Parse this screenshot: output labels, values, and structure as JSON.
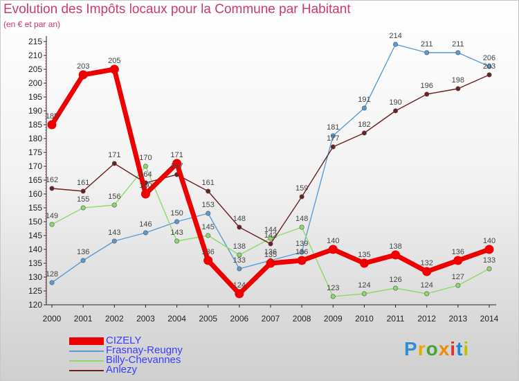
{
  "title": "Evolution des Impôts locaux pour la Commune par Habitant",
  "subtitle": "(en € et par an)",
  "logo": {
    "text": "Proxiti",
    "colors": [
      "#2f8fd0",
      "#e8a800",
      "#46a335",
      "#f08a00",
      "#e03030",
      "#1e88d8",
      "#c0c000"
    ]
  },
  "chart_data": {
    "type": "line",
    "x": [
      2000,
      2001,
      2002,
      2003,
      2004,
      2005,
      2006,
      2007,
      2008,
      2009,
      2010,
      2011,
      2012,
      2013,
      2014
    ],
    "ylim": [
      120,
      215
    ],
    "yticks": [
      120,
      125,
      130,
      135,
      140,
      145,
      150,
      155,
      160,
      165,
      170,
      175,
      180,
      185,
      190,
      195,
      200,
      205,
      210,
      215
    ],
    "grid": false,
    "legend_position": "bottom-left",
    "series": [
      {
        "name": "CIZELY",
        "color": "#ee0000",
        "values": [
          185,
          203,
          205,
          160,
          171,
          136,
          124,
          135,
          136,
          140,
          135,
          138,
          132,
          136,
          140
        ]
      },
      {
        "name": "Frasnay-Reugny",
        "color": "#5a9bd5",
        "values": [
          128,
          136,
          143,
          146,
          150,
          153,
          133,
          136,
          139,
          181,
          191,
          214,
          211,
          211,
          206
        ]
      },
      {
        "name": "Billy-Chevannes",
        "color": "#8ed96a",
        "values": [
          149,
          155,
          156,
          170,
          143,
          145,
          138,
          144,
          148,
          123,
          124,
          126,
          124,
          127,
          133
        ]
      },
      {
        "name": "Anlezy",
        "color": "#6b1f1f",
        "values": [
          162,
          161,
          171,
          164,
          167,
          161,
          148,
          142,
          159,
          177,
          182,
          190,
          196,
          198,
          203
        ]
      }
    ]
  }
}
